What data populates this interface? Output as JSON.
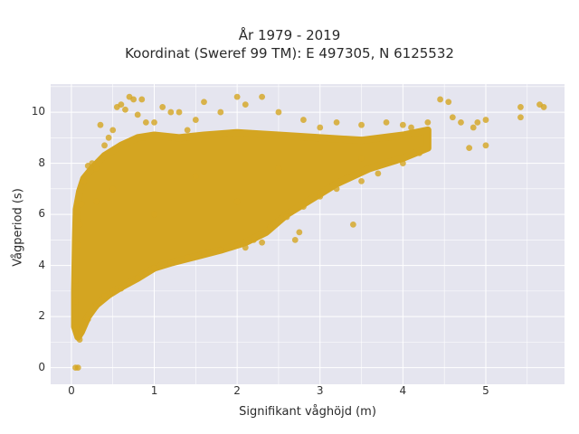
{
  "chart_data": {
    "type": "scatter",
    "title": "År 1979 - 2019",
    "subtitle": "Koordinat (Sweref 99 TM): E 497305, N 6125532",
    "xlabel": "Signifikant våghöjd (m)",
    "ylabel": "Vågperiod (s)",
    "xlim": [
      -0.25,
      5.95
    ],
    "ylim": [
      -0.65,
      11.1
    ],
    "x_ticks": [
      0,
      1,
      2,
      3,
      4,
      5
    ],
    "y_ticks": [
      0,
      2,
      4,
      6,
      8,
      10
    ],
    "grid": true,
    "legend": "none",
    "colors": {
      "marker": "#d4a521",
      "plot_bg": "#e5e5ef",
      "grid": "#ffffff"
    },
    "series": [
      {
        "points": [
          [
            0.05,
            0.0
          ],
          [
            0.08,
            0.0
          ],
          [
            0.06,
            1.6
          ],
          [
            0.08,
            1.3
          ],
          [
            0.1,
            1.1
          ],
          [
            0.12,
            1.4
          ],
          [
            0.05,
            2.6
          ],
          [
            0.05,
            3.4
          ],
          [
            0.08,
            4.8
          ],
          [
            0.1,
            5.6
          ],
          [
            0.12,
            6.4
          ],
          [
            0.15,
            7.3
          ],
          [
            0.2,
            7.9
          ],
          [
            0.25,
            8.0
          ],
          [
            0.3,
            7.8
          ],
          [
            0.35,
            9.5
          ],
          [
            0.4,
            8.7
          ],
          [
            0.45,
            9.0
          ],
          [
            0.5,
            9.3
          ],
          [
            0.55,
            10.2
          ],
          [
            0.6,
            10.3
          ],
          [
            0.65,
            10.1
          ],
          [
            0.7,
            10.6
          ],
          [
            0.75,
            10.5
          ],
          [
            0.8,
            9.9
          ],
          [
            0.85,
            10.5
          ],
          [
            0.9,
            9.6
          ],
          [
            1.0,
            9.6
          ],
          [
            1.1,
            10.2
          ],
          [
            1.2,
            10.0
          ],
          [
            1.3,
            10.0
          ],
          [
            1.4,
            9.3
          ],
          [
            1.5,
            9.7
          ],
          [
            1.6,
            10.4
          ],
          [
            1.8,
            10.0
          ],
          [
            2.0,
            10.6
          ],
          [
            2.1,
            10.3
          ],
          [
            2.3,
            10.6
          ],
          [
            2.5,
            10.0
          ],
          [
            2.8,
            9.7
          ],
          [
            3.0,
            9.4
          ],
          [
            3.2,
            9.6
          ],
          [
            3.5,
            9.5
          ],
          [
            3.8,
            9.6
          ],
          [
            4.0,
            9.5
          ],
          [
            4.1,
            9.4
          ],
          [
            4.3,
            9.6
          ],
          [
            4.45,
            10.5
          ],
          [
            4.55,
            10.4
          ],
          [
            4.6,
            9.8
          ],
          [
            4.7,
            9.6
          ],
          [
            4.8,
            8.6
          ],
          [
            4.85,
            9.4
          ],
          [
            4.9,
            9.6
          ],
          [
            5.0,
            9.7
          ],
          [
            5.0,
            8.7
          ],
          [
            5.42,
            10.2
          ],
          [
            5.42,
            9.8
          ],
          [
            5.65,
            10.3
          ],
          [
            5.7,
            10.2
          ],
          [
            0.2,
            1.9
          ],
          [
            0.3,
            2.4
          ],
          [
            0.4,
            2.8
          ],
          [
            0.5,
            3.0
          ],
          [
            0.6,
            3.1
          ],
          [
            0.7,
            3.3
          ],
          [
            0.8,
            3.5
          ],
          [
            0.9,
            3.7
          ],
          [
            1.0,
            3.9
          ],
          [
            1.2,
            4.1
          ],
          [
            1.4,
            4.3
          ],
          [
            1.6,
            4.5
          ],
          [
            1.8,
            4.6
          ],
          [
            2.0,
            4.8
          ],
          [
            2.2,
            5.0
          ],
          [
            2.4,
            5.5
          ],
          [
            2.6,
            5.9
          ],
          [
            2.8,
            6.3
          ],
          [
            3.0,
            6.7
          ],
          [
            3.2,
            7.0
          ],
          [
            3.4,
            5.6
          ],
          [
            3.5,
            7.3
          ],
          [
            3.7,
            7.6
          ],
          [
            4.0,
            8.0
          ],
          [
            4.2,
            8.4
          ],
          [
            2.7,
            5.0
          ],
          [
            2.75,
            5.3
          ],
          [
            2.3,
            4.9
          ],
          [
            2.1,
            4.7
          ],
          [
            0.3,
            6.5
          ],
          [
            0.5,
            7.0
          ],
          [
            1.5,
            7.5
          ],
          [
            2.5,
            7.8
          ],
          [
            3.5,
            8.2
          ],
          [
            1.0,
            6.0
          ],
          [
            2.0,
            6.5
          ]
        ]
      }
    ]
  }
}
